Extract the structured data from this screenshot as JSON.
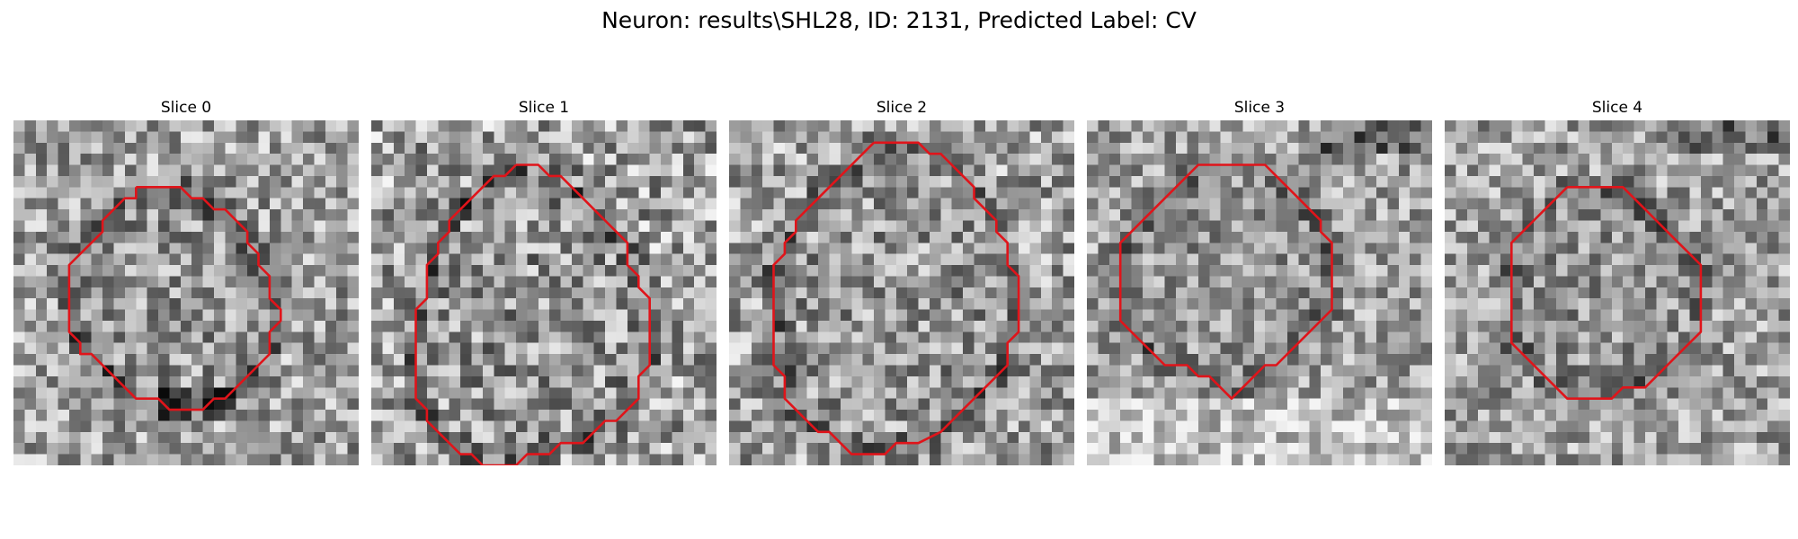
{
  "figure": {
    "title": "Neuron: results\\SHL28, ID: 2131, Predicted Label: CV"
  },
  "slices": [
    {
      "title": "Slice 0",
      "contour": [
        [
          11,
          6
        ],
        [
          15,
          6
        ],
        [
          16,
          7
        ],
        [
          17,
          7
        ],
        [
          18,
          8
        ],
        [
          19,
          8
        ],
        [
          20,
          9
        ],
        [
          21,
          10
        ],
        [
          21,
          11
        ],
        [
          22,
          12
        ],
        [
          22,
          13
        ],
        [
          23,
          14
        ],
        [
          23,
          16
        ],
        [
          24,
          17
        ],
        [
          24,
          18
        ],
        [
          23,
          19
        ],
        [
          23,
          21
        ],
        [
          22,
          22
        ],
        [
          21,
          23
        ],
        [
          20,
          24
        ],
        [
          19,
          25
        ],
        [
          18,
          25
        ],
        [
          17,
          26
        ],
        [
          14,
          26
        ],
        [
          13,
          25
        ],
        [
          11,
          25
        ],
        [
          10,
          24
        ],
        [
          9,
          23
        ],
        [
          8,
          22
        ],
        [
          7,
          21
        ],
        [
          6,
          21
        ],
        [
          6,
          20
        ],
        [
          5,
          19
        ],
        [
          5,
          18
        ],
        [
          5,
          13
        ],
        [
          6,
          12
        ],
        [
          7,
          11
        ],
        [
          8,
          10
        ],
        [
          8,
          9
        ],
        [
          9,
          8
        ],
        [
          10,
          7
        ],
        [
          11,
          7
        ],
        [
          11,
          6
        ]
      ],
      "contrast": 1.0,
      "dark_region": [
        [
          14,
          25
        ],
        [
          18,
          25
        ]
      ]
    },
    {
      "title": "Slice 1",
      "contour": [
        [
          13,
          4
        ],
        [
          15,
          4
        ],
        [
          16,
          5
        ],
        [
          17,
          5
        ],
        [
          18,
          6
        ],
        [
          19,
          7
        ],
        [
          20,
          8
        ],
        [
          21,
          9
        ],
        [
          22,
          10
        ],
        [
          23,
          11
        ],
        [
          23,
          13
        ],
        [
          24,
          14
        ],
        [
          24,
          15
        ],
        [
          25,
          16
        ],
        [
          25,
          22
        ],
        [
          24,
          23
        ],
        [
          24,
          25
        ],
        [
          23,
          26
        ],
        [
          22,
          27
        ],
        [
          21,
          27
        ],
        [
          20,
          28
        ],
        [
          19,
          29
        ],
        [
          17,
          29
        ],
        [
          16,
          30
        ],
        [
          14,
          30
        ],
        [
          13,
          31
        ],
        [
          10,
          31
        ],
        [
          9,
          30
        ],
        [
          8,
          30
        ],
        [
          7,
          29
        ],
        [
          6,
          28
        ],
        [
          5,
          27
        ],
        [
          5,
          26
        ],
        [
          4,
          25
        ],
        [
          4,
          24
        ],
        [
          4,
          17
        ],
        [
          5,
          16
        ],
        [
          5,
          13
        ],
        [
          6,
          12
        ],
        [
          6,
          11
        ],
        [
          7,
          10
        ],
        [
          7,
          9
        ],
        [
          8,
          8
        ],
        [
          9,
          7
        ],
        [
          10,
          6
        ],
        [
          11,
          5
        ],
        [
          12,
          5
        ],
        [
          13,
          4
        ]
      ],
      "contrast": 1.15,
      "dark_region": []
    },
    {
      "title": "Slice 2",
      "contour": [
        [
          13,
          2
        ],
        [
          17,
          2
        ],
        [
          18,
          3
        ],
        [
          19,
          3
        ],
        [
          20,
          4
        ],
        [
          21,
          5
        ],
        [
          22,
          6
        ],
        [
          22,
          7
        ],
        [
          23,
          8
        ],
        [
          24,
          9
        ],
        [
          24,
          10
        ],
        [
          25,
          11
        ],
        [
          25,
          13
        ],
        [
          26,
          14
        ],
        [
          26,
          19
        ],
        [
          25,
          20
        ],
        [
          25,
          22
        ],
        [
          24,
          23
        ],
        [
          23,
          24
        ],
        [
          22,
          25
        ],
        [
          21,
          26
        ],
        [
          20,
          27
        ],
        [
          19,
          28
        ],
        [
          17,
          29
        ],
        [
          15,
          29
        ],
        [
          14,
          30
        ],
        [
          11,
          30
        ],
        [
          10,
          29
        ],
        [
          9,
          28
        ],
        [
          8,
          28
        ],
        [
          7,
          27
        ],
        [
          6,
          26
        ],
        [
          5,
          25
        ],
        [
          5,
          23
        ],
        [
          4,
          22
        ],
        [
          4,
          19
        ],
        [
          4,
          13
        ],
        [
          5,
          12
        ],
        [
          5,
          11
        ],
        [
          6,
          10
        ],
        [
          6,
          9
        ],
        [
          7,
          8
        ],
        [
          8,
          7
        ],
        [
          9,
          6
        ],
        [
          10,
          5
        ],
        [
          11,
          4
        ],
        [
          12,
          3
        ],
        [
          13,
          2
        ]
      ],
      "contrast": 1.05,
      "dark_region": []
    },
    {
      "title": "Slice 3",
      "contour": [
        [
          11,
          4
        ],
        [
          16,
          4
        ],
        [
          17,
          5
        ],
        [
          18,
          6
        ],
        [
          19,
          7
        ],
        [
          20,
          8
        ],
        [
          21,
          9
        ],
        [
          21,
          10
        ],
        [
          22,
          11
        ],
        [
          22,
          17
        ],
        [
          21,
          18
        ],
        [
          20,
          19
        ],
        [
          19,
          20
        ],
        [
          18,
          21
        ],
        [
          17,
          22
        ],
        [
          16,
          22
        ],
        [
          15,
          23
        ],
        [
          14,
          24
        ],
        [
          13,
          25
        ],
        [
          12,
          24
        ],
        [
          11,
          23
        ],
        [
          10,
          23
        ],
        [
          9,
          22
        ],
        [
          7,
          22
        ],
        [
          6,
          21
        ],
        [
          5,
          20
        ],
        [
          4,
          19
        ],
        [
          3,
          18
        ],
        [
          3,
          11
        ],
        [
          4,
          10
        ],
        [
          5,
          9
        ],
        [
          6,
          8
        ],
        [
          7,
          7
        ],
        [
          8,
          6
        ],
        [
          9,
          5
        ],
        [
          10,
          4
        ],
        [
          11,
          4
        ]
      ],
      "contrast": 0.9,
      "dark_region": []
    },
    {
      "title": "Slice 4",
      "contour": [
        [
          11,
          6
        ],
        [
          16,
          6
        ],
        [
          17,
          7
        ],
        [
          18,
          8
        ],
        [
          19,
          9
        ],
        [
          20,
          10
        ],
        [
          21,
          11
        ],
        [
          22,
          12
        ],
        [
          23,
          13
        ],
        [
          23,
          19
        ],
        [
          22,
          20
        ],
        [
          21,
          21
        ],
        [
          20,
          22
        ],
        [
          19,
          23
        ],
        [
          18,
          24
        ],
        [
          16,
          24
        ],
        [
          15,
          25
        ],
        [
          11,
          25
        ],
        [
          10,
          24
        ],
        [
          9,
          23
        ],
        [
          8,
          22
        ],
        [
          7,
          21
        ],
        [
          6,
          20
        ],
        [
          6,
          11
        ],
        [
          7,
          10
        ],
        [
          8,
          9
        ],
        [
          9,
          8
        ],
        [
          10,
          7
        ],
        [
          11,
          6
        ]
      ],
      "contrast": 0.95,
      "dark_region": []
    }
  ],
  "contour_color": "#e0141a"
}
